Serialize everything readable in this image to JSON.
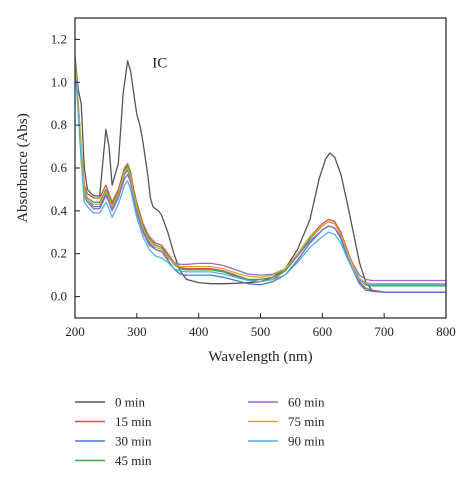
{
  "chart_data": {
    "type": "line",
    "title": "",
    "xlabel": "Wavelength (nm)",
    "ylabel": "Absorbance (Abs)",
    "xlim": [
      200,
      800
    ],
    "ylim": [
      -0.1,
      1.3
    ],
    "xticks": [
      200,
      300,
      400,
      500,
      600,
      700,
      800
    ],
    "yticks": [
      0.0,
      0.2,
      0.4,
      0.6,
      0.8,
      1.0,
      1.2
    ],
    "grid": false,
    "legend_position": "bottom",
    "annotations": [
      {
        "text": "IC",
        "x": 325,
        "y": 1.07
      }
    ],
    "series": [
      {
        "name": "0 min",
        "color": "#555555",
        "x": [
          200,
          205,
          210,
          215,
          220,
          230,
          240,
          250,
          255,
          260,
          270,
          278,
          285,
          290,
          295,
          300,
          305,
          310,
          318,
          322,
          326,
          330,
          335,
          340,
          350,
          360,
          370,
          380,
          400,
          420,
          440,
          460,
          480,
          500,
          520,
          540,
          560,
          580,
          595,
          605,
          612,
          620,
          630,
          640,
          650,
          660,
          670,
          680,
          700,
          720,
          760,
          800
        ],
        "y": [
          1.12,
          0.97,
          0.9,
          0.6,
          0.5,
          0.47,
          0.47,
          0.78,
          0.7,
          0.52,
          0.62,
          0.95,
          1.1,
          1.05,
          0.95,
          0.85,
          0.8,
          0.72,
          0.56,
          0.46,
          0.42,
          0.41,
          0.4,
          0.38,
          0.3,
          0.2,
          0.12,
          0.08,
          0.065,
          0.06,
          0.06,
          0.062,
          0.065,
          0.07,
          0.09,
          0.13,
          0.22,
          0.36,
          0.55,
          0.64,
          0.67,
          0.65,
          0.57,
          0.44,
          0.3,
          0.16,
          0.07,
          0.03,
          0.02,
          0.02,
          0.02,
          0.02
        ]
      },
      {
        "name": "15 min",
        "color": "#d9534a",
        "x": [
          200,
          205,
          210,
          215,
          220,
          230,
          240,
          250,
          255,
          260,
          270,
          280,
          285,
          290,
          295,
          300,
          310,
          320,
          330,
          340,
          350,
          360,
          370,
          380,
          400,
          420,
          440,
          460,
          480,
          500,
          520,
          540,
          560,
          580,
          600,
          610,
          620,
          630,
          640,
          650,
          660,
          670,
          680,
          700,
          800
        ],
        "y": [
          1.12,
          0.9,
          0.7,
          0.52,
          0.48,
          0.46,
          0.46,
          0.52,
          0.48,
          0.44,
          0.5,
          0.6,
          0.62,
          0.58,
          0.5,
          0.44,
          0.34,
          0.28,
          0.25,
          0.24,
          0.2,
          0.16,
          0.135,
          0.13,
          0.13,
          0.13,
          0.12,
          0.1,
          0.08,
          0.07,
          0.08,
          0.12,
          0.2,
          0.28,
          0.34,
          0.36,
          0.35,
          0.3,
          0.22,
          0.14,
          0.07,
          0.04,
          0.03,
          0.02,
          0.02
        ]
      },
      {
        "name": "30 min",
        "color": "#4a74d0",
        "x": [
          200,
          205,
          210,
          215,
          220,
          230,
          240,
          250,
          255,
          260,
          270,
          280,
          285,
          290,
          295,
          300,
          310,
          320,
          330,
          340,
          350,
          360,
          370,
          380,
          400,
          420,
          440,
          460,
          480,
          500,
          520,
          540,
          560,
          580,
          600,
          610,
          620,
          630,
          640,
          650,
          660,
          670,
          680,
          700,
          800
        ],
        "y": [
          1.1,
          0.9,
          0.68,
          0.48,
          0.45,
          0.42,
          0.42,
          0.48,
          0.45,
          0.41,
          0.47,
          0.57,
          0.59,
          0.55,
          0.47,
          0.41,
          0.31,
          0.25,
          0.22,
          0.21,
          0.17,
          0.13,
          0.105,
          0.1,
          0.1,
          0.1,
          0.09,
          0.075,
          0.06,
          0.055,
          0.07,
          0.1,
          0.17,
          0.25,
          0.31,
          0.33,
          0.32,
          0.27,
          0.19,
          0.12,
          0.06,
          0.03,
          0.025,
          0.02,
          0.02
        ]
      },
      {
        "name": "45 min",
        "color": "#3aa84a",
        "x": [
          200,
          205,
          210,
          215,
          220,
          230,
          240,
          250,
          255,
          260,
          270,
          280,
          285,
          290,
          295,
          300,
          310,
          320,
          330,
          340,
          350,
          360,
          370,
          380,
          400,
          420,
          440,
          460,
          480,
          500,
          520,
          540,
          560,
          580,
          600,
          610,
          620,
          630,
          640,
          650,
          660,
          670,
          680,
          700,
          800
        ],
        "y": [
          1.11,
          0.92,
          0.69,
          0.5,
          0.46,
          0.44,
          0.44,
          0.5,
          0.47,
          0.43,
          0.49,
          0.59,
          0.61,
          0.57,
          0.49,
          0.43,
          0.33,
          0.27,
          0.24,
          0.23,
          0.19,
          0.15,
          0.13,
          0.125,
          0.125,
          0.125,
          0.115,
          0.095,
          0.08,
          0.08,
          0.09,
          0.12,
          0.19,
          0.27,
          0.33,
          0.35,
          0.34,
          0.29,
          0.21,
          0.14,
          0.08,
          0.055,
          0.05,
          0.05,
          0.05
        ]
      },
      {
        "name": "60 min",
        "color": "#9b6ac9",
        "x": [
          200,
          205,
          210,
          215,
          220,
          230,
          240,
          250,
          255,
          260,
          270,
          280,
          285,
          290,
          295,
          300,
          310,
          320,
          330,
          340,
          350,
          360,
          370,
          380,
          400,
          420,
          440,
          460,
          480,
          500,
          520,
          540,
          560,
          580,
          600,
          610,
          620,
          630,
          640,
          650,
          660,
          670,
          680,
          700,
          800
        ],
        "y": [
          1.09,
          0.88,
          0.66,
          0.47,
          0.44,
          0.41,
          0.41,
          0.47,
          0.44,
          0.4,
          0.46,
          0.55,
          0.57,
          0.53,
          0.45,
          0.39,
          0.3,
          0.24,
          0.22,
          0.21,
          0.18,
          0.16,
          0.15,
          0.15,
          0.155,
          0.155,
          0.145,
          0.125,
          0.105,
          0.1,
          0.105,
          0.13,
          0.19,
          0.26,
          0.31,
          0.33,
          0.32,
          0.28,
          0.21,
          0.15,
          0.1,
          0.08,
          0.075,
          0.075,
          0.075
        ]
      },
      {
        "name": "75 min",
        "color": "#d6a830",
        "x": [
          200,
          205,
          210,
          215,
          220,
          230,
          240,
          250,
          255,
          260,
          270,
          280,
          285,
          290,
          295,
          300,
          310,
          320,
          330,
          340,
          350,
          360,
          370,
          380,
          400,
          420,
          440,
          460,
          480,
          500,
          520,
          540,
          560,
          580,
          600,
          610,
          620,
          630,
          640,
          650,
          660,
          670,
          680,
          700,
          800
        ],
        "y": [
          1.11,
          0.91,
          0.69,
          0.49,
          0.45,
          0.43,
          0.43,
          0.49,
          0.46,
          0.42,
          0.48,
          0.58,
          0.6,
          0.56,
          0.48,
          0.42,
          0.32,
          0.26,
          0.23,
          0.22,
          0.185,
          0.155,
          0.14,
          0.14,
          0.14,
          0.14,
          0.13,
          0.11,
          0.095,
          0.09,
          0.1,
          0.13,
          0.2,
          0.28,
          0.33,
          0.35,
          0.34,
          0.29,
          0.21,
          0.14,
          0.085,
          0.065,
          0.06,
          0.06,
          0.06
        ]
      },
      {
        "name": "90 min",
        "color": "#4fb3d6",
        "x": [
          200,
          205,
          210,
          215,
          220,
          230,
          240,
          250,
          255,
          260,
          270,
          280,
          285,
          290,
          295,
          300,
          310,
          320,
          330,
          340,
          350,
          360,
          370,
          380,
          400,
          420,
          440,
          460,
          480,
          500,
          520,
          540,
          560,
          580,
          600,
          610,
          620,
          630,
          640,
          650,
          660,
          670,
          680,
          700,
          800
        ],
        "y": [
          1.08,
          0.86,
          0.63,
          0.44,
          0.42,
          0.39,
          0.39,
          0.44,
          0.41,
          0.37,
          0.43,
          0.52,
          0.54,
          0.5,
          0.43,
          0.37,
          0.28,
          0.22,
          0.19,
          0.18,
          0.16,
          0.13,
          0.12,
          0.115,
          0.115,
          0.115,
          0.105,
          0.09,
          0.075,
          0.07,
          0.08,
          0.1,
          0.16,
          0.23,
          0.28,
          0.3,
          0.29,
          0.25,
          0.18,
          0.12,
          0.075,
          0.06,
          0.055,
          0.055,
          0.055
        ]
      }
    ]
  }
}
